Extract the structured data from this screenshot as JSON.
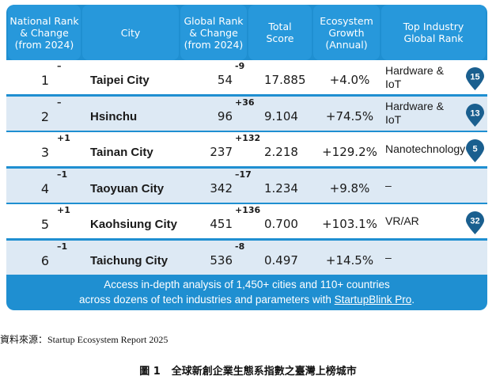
{
  "headers": {
    "national_rank": "National Rank\n& Change\n(from 2024)",
    "city": "City",
    "global_rank": "Global Rank\n& Change\n(from 2024)",
    "total_score": "Total\nScore",
    "ecosystem_growth": "Ecosystem\nGrowth\n(Annual)",
    "top_industry": "Top Industry\nGlobal Rank"
  },
  "rows": [
    {
      "rank": "1",
      "rank_change": "–",
      "city": "Taipei City",
      "global_rank": "54",
      "global_change": "-9",
      "score": "17.885",
      "growth": "+4.0%",
      "industry": "Hardware &\nIoT",
      "pin": "15"
    },
    {
      "rank": "2",
      "rank_change": "–",
      "city": "Hsinchu",
      "global_rank": "96",
      "global_change": "+36",
      "score": "9.104",
      "growth": "+74.5%",
      "industry": "Hardware &\nIoT",
      "pin": "13"
    },
    {
      "rank": "3",
      "rank_change": "+1",
      "city": "Tainan City",
      "global_rank": "237",
      "global_change": "+132",
      "score": "2.218",
      "growth": "+129.2%",
      "industry": "Nanotechnology",
      "pin": "5"
    },
    {
      "rank": "4",
      "rank_change": "–1",
      "city": "Taoyuan City",
      "global_rank": "342",
      "global_change": "–17",
      "score": "1.234",
      "growth": "+9.8%",
      "industry": "–",
      "pin": ""
    },
    {
      "rank": "5",
      "rank_change": "+1",
      "city": "Kaohsiung City",
      "global_rank": "451",
      "global_change": "+136",
      "score": "0.700",
      "growth": "+103.1%",
      "industry": "VR/AR",
      "pin": "32"
    },
    {
      "rank": "6",
      "rank_change": "–1",
      "city": "Taichung City",
      "global_rank": "536",
      "global_change": "-8",
      "score": "0.497",
      "growth": "+14.5%",
      "industry": "–",
      "pin": ""
    }
  ],
  "footer": {
    "line1": "Access in-depth analysis of 1,450+ cities and 110+ countries",
    "line2_prefix": "across dozens of tech industries and parameters with ",
    "link": "StartupBlink Pro",
    "line2_suffix": "."
  },
  "source": "資料來源：Startup Ecosystem Report 2025",
  "caption": {
    "figure": "圖 1",
    "title": "全球新創企業生態系指數之臺灣上榜城市"
  },
  "colors": {
    "header_blue": "#2798db",
    "footer_blue": "#1f8fd1",
    "pin_blue": "#1a5f8f",
    "row_alt": "#dde9f4"
  }
}
